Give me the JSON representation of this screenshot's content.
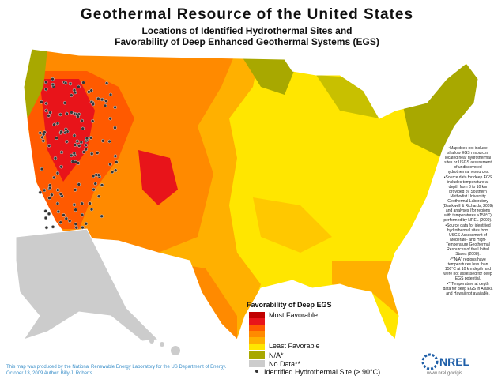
{
  "header": {
    "title": "Geothermal Resource of the United States",
    "subtitle_lines": [
      "Locations of Identified Hydrothermal Sites and",
      "Favorability of Deep Enhanced Geothermal Systems (EGS)"
    ]
  },
  "legend": {
    "title": "Favorability of Deep EGS",
    "most": "Most Favorable",
    "least": "Least Favorable",
    "na": "N/A*",
    "no_data": "No Data**",
    "sites": "Identified Hydrothermal Site (≥ 90°C)"
  },
  "notes": [
    "Map does not include shallow EGS resources located near hydrothermal sites or USGS assessment of undiscovered hydrothermal resources.",
    "Source data for deep EGS includes temperature at depth from 3 to 10 km provided by Southern Methodist University Geothermal Laboratory (Blackwell & Richards, 2009) and analyses (for regions with temperatures >150°C) performed by NREL (2009).",
    "Source data for identified hydrothermal sites from USGS Assessment of Moderate- and High-Temperature Geothermal Resources of the United States (2008).",
    "*\"N/A\" regions have temperatures less than 150°C at 10 km depth and were not assessed for deep EGS potential.",
    "**Temperature at depth data for deep EGS in Alaska and Hawaii not available."
  ],
  "footer": {
    "lines": [
      "This map was produced by the National Renewable Energy Laboratory for the US Department of Energy.",
      "October 13, 2009 Author: Billy J. Roberts"
    ]
  },
  "logo": {
    "name": "NREL",
    "url": "www.nrel.gov/gis"
  }
}
